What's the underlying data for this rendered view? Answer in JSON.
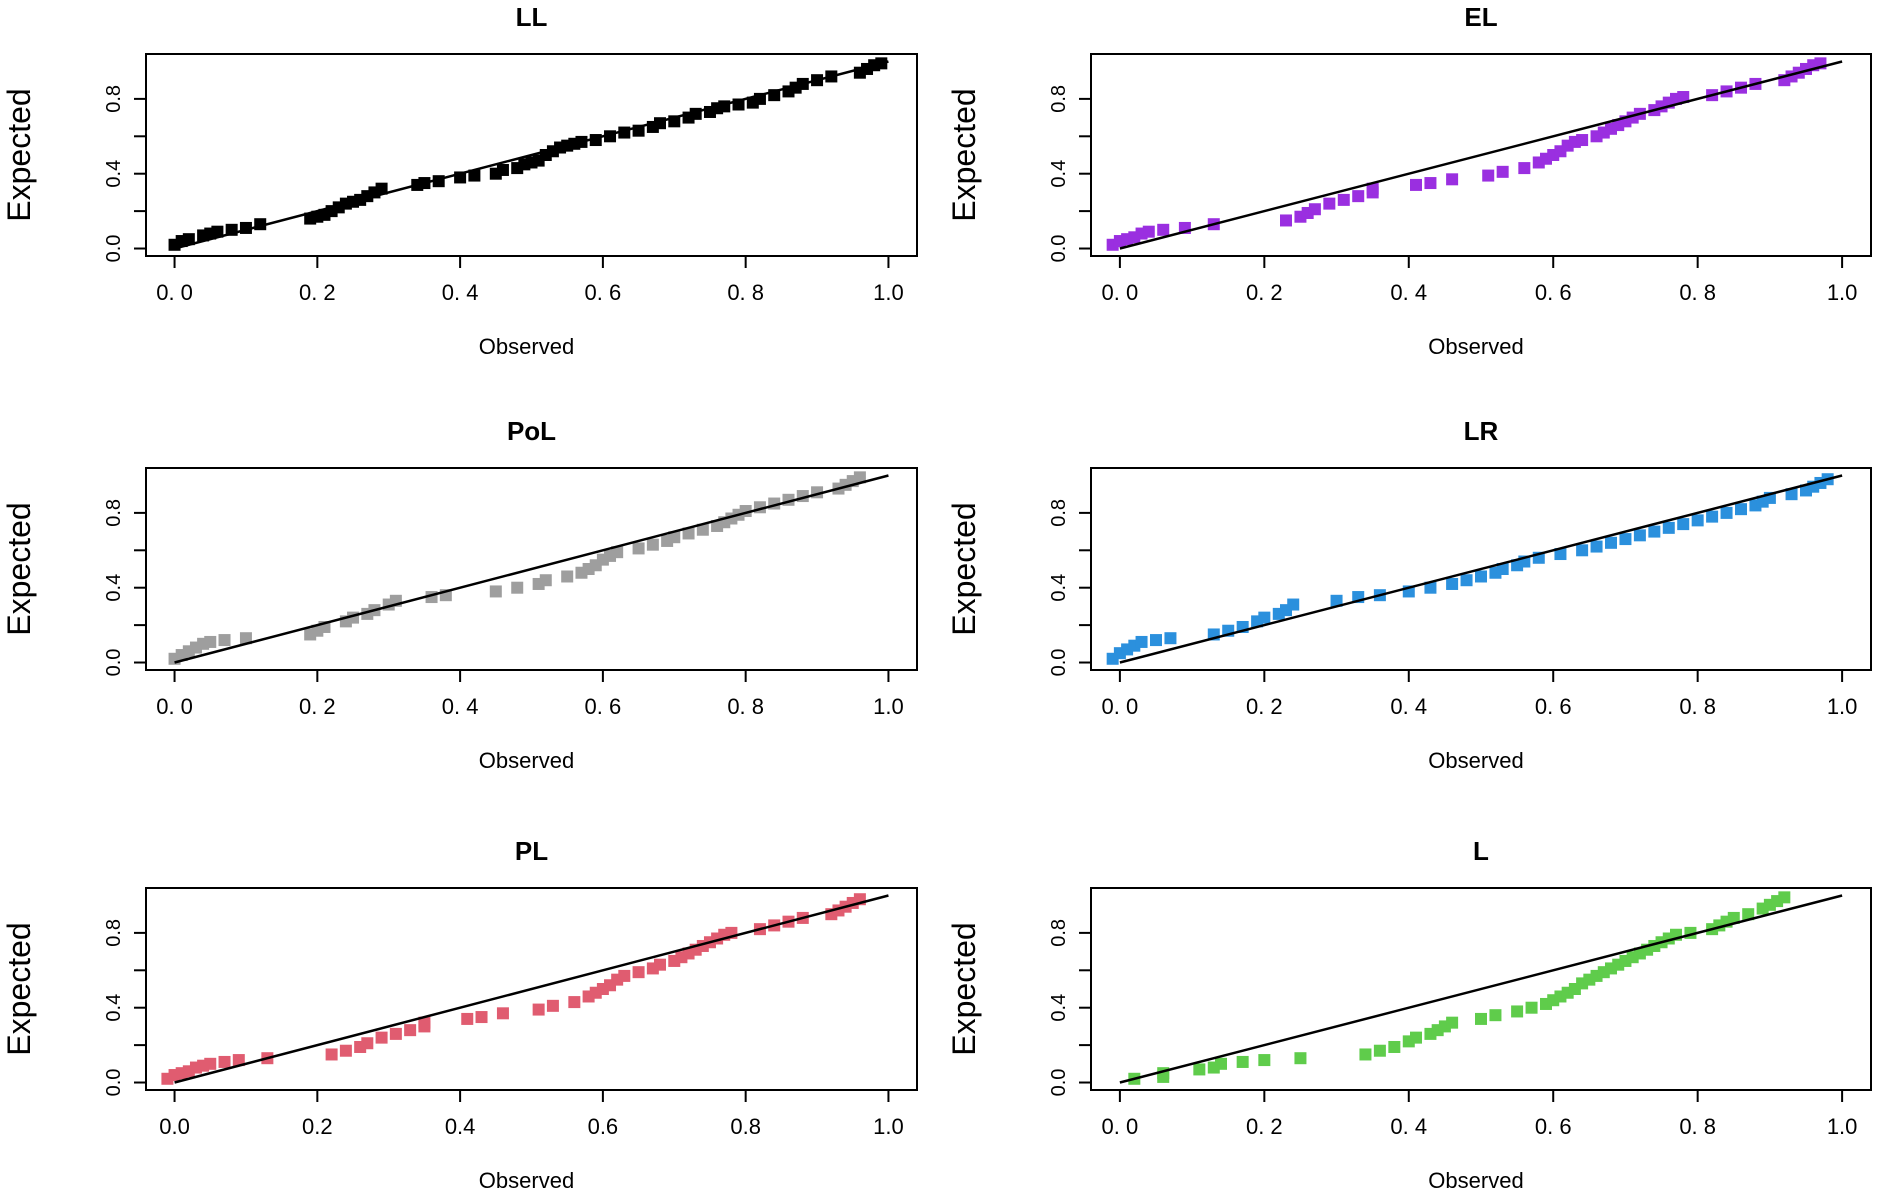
{
  "chart_data": [
    {
      "type": "scatter",
      "title": "LL",
      "xlabel": "Observed",
      "ylabel": "Expected",
      "xlim": [
        0,
        1
      ],
      "ylim": [
        0,
        1
      ],
      "x_tick_labels": [
        "0. 0",
        "0. 2",
        "0. 4",
        "0. 6",
        "0. 8",
        "1.0"
      ],
      "y_tick_labels": [
        "0.0",
        "0.4",
        "0.8"
      ],
      "color": "#000000",
      "reference_line": [
        [
          0,
          0
        ],
        [
          1,
          1
        ]
      ],
      "points": [
        [
          0.0,
          0.02
        ],
        [
          0.01,
          0.04
        ],
        [
          0.02,
          0.05
        ],
        [
          0.04,
          0.07
        ],
        [
          0.05,
          0.08
        ],
        [
          0.06,
          0.09
        ],
        [
          0.08,
          0.1
        ],
        [
          0.1,
          0.11
        ],
        [
          0.12,
          0.13
        ],
        [
          0.19,
          0.16
        ],
        [
          0.2,
          0.17
        ],
        [
          0.21,
          0.18
        ],
        [
          0.22,
          0.2
        ],
        [
          0.23,
          0.22
        ],
        [
          0.24,
          0.24
        ],
        [
          0.25,
          0.25
        ],
        [
          0.26,
          0.26
        ],
        [
          0.27,
          0.28
        ],
        [
          0.28,
          0.3
        ],
        [
          0.29,
          0.32
        ],
        [
          0.34,
          0.34
        ],
        [
          0.35,
          0.35
        ],
        [
          0.37,
          0.36
        ],
        [
          0.4,
          0.38
        ],
        [
          0.42,
          0.39
        ],
        [
          0.45,
          0.4
        ],
        [
          0.46,
          0.42
        ],
        [
          0.48,
          0.43
        ],
        [
          0.49,
          0.45
        ],
        [
          0.5,
          0.46
        ],
        [
          0.51,
          0.47
        ],
        [
          0.52,
          0.5
        ],
        [
          0.53,
          0.52
        ],
        [
          0.54,
          0.54
        ],
        [
          0.55,
          0.55
        ],
        [
          0.56,
          0.56
        ],
        [
          0.57,
          0.57
        ],
        [
          0.59,
          0.58
        ],
        [
          0.61,
          0.6
        ],
        [
          0.63,
          0.62
        ],
        [
          0.65,
          0.63
        ],
        [
          0.67,
          0.65
        ],
        [
          0.68,
          0.67
        ],
        [
          0.7,
          0.68
        ],
        [
          0.72,
          0.7
        ],
        [
          0.73,
          0.72
        ],
        [
          0.75,
          0.73
        ],
        [
          0.76,
          0.75
        ],
        [
          0.77,
          0.76
        ],
        [
          0.79,
          0.77
        ],
        [
          0.81,
          0.78
        ],
        [
          0.82,
          0.8
        ],
        [
          0.84,
          0.82
        ],
        [
          0.86,
          0.84
        ],
        [
          0.87,
          0.86
        ],
        [
          0.88,
          0.88
        ],
        [
          0.9,
          0.9
        ],
        [
          0.92,
          0.92
        ],
        [
          0.96,
          0.94
        ],
        [
          0.97,
          0.96
        ],
        [
          0.98,
          0.98
        ],
        [
          0.99,
          0.99
        ]
      ]
    },
    {
      "type": "scatter",
      "title": "EL",
      "xlabel": "Observed",
      "ylabel": "Expected",
      "xlim": [
        0,
        1
      ],
      "ylim": [
        0,
        1
      ],
      "x_tick_labels": [
        "0. 0",
        "0. 2",
        "0. 4",
        "0. 6",
        "0. 8",
        "1.0"
      ],
      "y_tick_labels": [
        "0.0",
        "0.4",
        "0.8"
      ],
      "color": "#9a2fe0",
      "reference_line": [
        [
          0,
          0
        ],
        [
          1,
          1
        ]
      ],
      "points": [
        [
          -0.01,
          0.02
        ],
        [
          0.0,
          0.04
        ],
        [
          0.01,
          0.05
        ],
        [
          0.02,
          0.06
        ],
        [
          0.03,
          0.08
        ],
        [
          0.04,
          0.09
        ],
        [
          0.06,
          0.1
        ],
        [
          0.09,
          0.11
        ],
        [
          0.13,
          0.13
        ],
        [
          0.23,
          0.15
        ],
        [
          0.25,
          0.17
        ],
        [
          0.26,
          0.19
        ],
        [
          0.27,
          0.21
        ],
        [
          0.29,
          0.24
        ],
        [
          0.31,
          0.26
        ],
        [
          0.33,
          0.28
        ],
        [
          0.35,
          0.3
        ],
        [
          0.35,
          0.32
        ],
        [
          0.41,
          0.34
        ],
        [
          0.43,
          0.35
        ],
        [
          0.46,
          0.37
        ],
        [
          0.51,
          0.39
        ],
        [
          0.53,
          0.41
        ],
        [
          0.56,
          0.43
        ],
        [
          0.58,
          0.46
        ],
        [
          0.59,
          0.48
        ],
        [
          0.6,
          0.5
        ],
        [
          0.61,
          0.52
        ],
        [
          0.62,
          0.55
        ],
        [
          0.63,
          0.57
        ],
        [
          0.64,
          0.58
        ],
        [
          0.66,
          0.6
        ],
        [
          0.67,
          0.62
        ],
        [
          0.68,
          0.64
        ],
        [
          0.69,
          0.66
        ],
        [
          0.7,
          0.68
        ],
        [
          0.71,
          0.7
        ],
        [
          0.72,
          0.72
        ],
        [
          0.74,
          0.74
        ],
        [
          0.75,
          0.76
        ],
        [
          0.76,
          0.78
        ],
        [
          0.77,
          0.8
        ],
        [
          0.78,
          0.81
        ],
        [
          0.82,
          0.82
        ],
        [
          0.84,
          0.84
        ],
        [
          0.86,
          0.86
        ],
        [
          0.88,
          0.88
        ],
        [
          0.92,
          0.9
        ],
        [
          0.93,
          0.92
        ],
        [
          0.94,
          0.94
        ],
        [
          0.95,
          0.96
        ],
        [
          0.96,
          0.98
        ],
        [
          0.97,
          0.99
        ]
      ]
    },
    {
      "type": "scatter",
      "title": "PoL",
      "xlabel": "Observed",
      "ylabel": "Expected",
      "xlim": [
        0,
        1
      ],
      "ylim": [
        0,
        1
      ],
      "x_tick_labels": [
        "0. 0",
        "0. 2",
        "0. 4",
        "0. 6",
        "0. 8",
        "1.0"
      ],
      "y_tick_labels": [
        "0.0",
        "0.4",
        "0.8"
      ],
      "color": "#9e9e9e",
      "reference_line": [
        [
          0,
          0
        ],
        [
          1,
          1
        ]
      ],
      "points": [
        [
          0.0,
          0.02
        ],
        [
          0.01,
          0.04
        ],
        [
          0.02,
          0.06
        ],
        [
          0.03,
          0.08
        ],
        [
          0.04,
          0.1
        ],
        [
          0.05,
          0.11
        ],
        [
          0.07,
          0.12
        ],
        [
          0.1,
          0.13
        ],
        [
          0.19,
          0.15
        ],
        [
          0.2,
          0.17
        ],
        [
          0.21,
          0.19
        ],
        [
          0.24,
          0.22
        ],
        [
          0.25,
          0.24
        ],
        [
          0.27,
          0.26
        ],
        [
          0.28,
          0.28
        ],
        [
          0.3,
          0.31
        ],
        [
          0.31,
          0.33
        ],
        [
          0.36,
          0.35
        ],
        [
          0.38,
          0.36
        ],
        [
          0.45,
          0.38
        ],
        [
          0.48,
          0.4
        ],
        [
          0.51,
          0.42
        ],
        [
          0.52,
          0.44
        ],
        [
          0.55,
          0.46
        ],
        [
          0.57,
          0.48
        ],
        [
          0.58,
          0.5
        ],
        [
          0.59,
          0.52
        ],
        [
          0.6,
          0.55
        ],
        [
          0.61,
          0.57
        ],
        [
          0.62,
          0.59
        ],
        [
          0.65,
          0.61
        ],
        [
          0.67,
          0.63
        ],
        [
          0.69,
          0.65
        ],
        [
          0.7,
          0.67
        ],
        [
          0.72,
          0.69
        ],
        [
          0.74,
          0.71
        ],
        [
          0.76,
          0.73
        ],
        [
          0.77,
          0.75
        ],
        [
          0.78,
          0.77
        ],
        [
          0.79,
          0.79
        ],
        [
          0.8,
          0.81
        ],
        [
          0.82,
          0.83
        ],
        [
          0.84,
          0.85
        ],
        [
          0.86,
          0.87
        ],
        [
          0.88,
          0.89
        ],
        [
          0.9,
          0.91
        ],
        [
          0.93,
          0.93
        ],
        [
          0.94,
          0.95
        ],
        [
          0.95,
          0.97
        ],
        [
          0.96,
          0.99
        ]
      ]
    },
    {
      "type": "scatter",
      "title": "LR",
      "xlabel": "Observed",
      "ylabel": "Expected",
      "xlim": [
        0,
        1
      ],
      "ylim": [
        0,
        1
      ],
      "x_tick_labels": [
        "0. 0",
        "0. 2",
        "0. 4",
        "0. 6",
        "0. 8",
        "1.0"
      ],
      "y_tick_labels": [
        "0.0",
        "0.4",
        "0.8"
      ],
      "color": "#2b90dd",
      "reference_line": [
        [
          0,
          0
        ],
        [
          1,
          1
        ]
      ],
      "points": [
        [
          -0.01,
          0.02
        ],
        [
          0.0,
          0.05
        ],
        [
          0.01,
          0.07
        ],
        [
          0.02,
          0.09
        ],
        [
          0.03,
          0.11
        ],
        [
          0.05,
          0.12
        ],
        [
          0.07,
          0.13
        ],
        [
          0.13,
          0.15
        ],
        [
          0.15,
          0.17
        ],
        [
          0.17,
          0.19
        ],
        [
          0.19,
          0.22
        ],
        [
          0.2,
          0.24
        ],
        [
          0.22,
          0.26
        ],
        [
          0.23,
          0.28
        ],
        [
          0.24,
          0.31
        ],
        [
          0.3,
          0.33
        ],
        [
          0.33,
          0.35
        ],
        [
          0.36,
          0.36
        ],
        [
          0.4,
          0.38
        ],
        [
          0.43,
          0.4
        ],
        [
          0.46,
          0.42
        ],
        [
          0.48,
          0.44
        ],
        [
          0.5,
          0.46
        ],
        [
          0.52,
          0.48
        ],
        [
          0.53,
          0.5
        ],
        [
          0.55,
          0.52
        ],
        [
          0.56,
          0.54
        ],
        [
          0.58,
          0.56
        ],
        [
          0.61,
          0.58
        ],
        [
          0.64,
          0.6
        ],
        [
          0.66,
          0.62
        ],
        [
          0.68,
          0.64
        ],
        [
          0.7,
          0.66
        ],
        [
          0.72,
          0.68
        ],
        [
          0.74,
          0.7
        ],
        [
          0.76,
          0.72
        ],
        [
          0.78,
          0.74
        ],
        [
          0.8,
          0.76
        ],
        [
          0.82,
          0.78
        ],
        [
          0.84,
          0.8
        ],
        [
          0.86,
          0.82
        ],
        [
          0.88,
          0.84
        ],
        [
          0.89,
          0.86
        ],
        [
          0.9,
          0.88
        ],
        [
          0.93,
          0.9
        ],
        [
          0.95,
          0.92
        ],
        [
          0.96,
          0.94
        ],
        [
          0.97,
          0.96
        ],
        [
          0.98,
          0.98
        ]
      ]
    },
    {
      "type": "scatter",
      "title": "PL",
      "xlabel": "Observed",
      "ylabel": "Expected",
      "xlim": [
        0,
        1
      ],
      "ylim": [
        0,
        1
      ],
      "x_tick_labels": [
        "0.0",
        "0.2",
        "0.4",
        "0.6",
        "0.8",
        "1.0"
      ],
      "y_tick_labels": [
        "0.0",
        "0.4",
        "0.8"
      ],
      "color": "#e05c70",
      "reference_line": [
        [
          0,
          0
        ],
        [
          1,
          1
        ]
      ],
      "points": [
        [
          -0.01,
          0.02
        ],
        [
          0.0,
          0.04
        ],
        [
          0.01,
          0.05
        ],
        [
          0.02,
          0.06
        ],
        [
          0.03,
          0.08
        ],
        [
          0.04,
          0.09
        ],
        [
          0.05,
          0.1
        ],
        [
          0.07,
          0.11
        ],
        [
          0.09,
          0.12
        ],
        [
          0.13,
          0.13
        ],
        [
          0.22,
          0.15
        ],
        [
          0.24,
          0.17
        ],
        [
          0.26,
          0.19
        ],
        [
          0.27,
          0.21
        ],
        [
          0.29,
          0.24
        ],
        [
          0.31,
          0.26
        ],
        [
          0.33,
          0.28
        ],
        [
          0.35,
          0.3
        ],
        [
          0.35,
          0.32
        ],
        [
          0.41,
          0.34
        ],
        [
          0.43,
          0.35
        ],
        [
          0.46,
          0.37
        ],
        [
          0.51,
          0.39
        ],
        [
          0.53,
          0.41
        ],
        [
          0.56,
          0.43
        ],
        [
          0.58,
          0.46
        ],
        [
          0.59,
          0.48
        ],
        [
          0.6,
          0.5
        ],
        [
          0.61,
          0.52
        ],
        [
          0.62,
          0.55
        ],
        [
          0.63,
          0.57
        ],
        [
          0.65,
          0.59
        ],
        [
          0.67,
          0.61
        ],
        [
          0.68,
          0.63
        ],
        [
          0.7,
          0.65
        ],
        [
          0.71,
          0.67
        ],
        [
          0.72,
          0.69
        ],
        [
          0.73,
          0.71
        ],
        [
          0.74,
          0.73
        ],
        [
          0.75,
          0.75
        ],
        [
          0.76,
          0.77
        ],
        [
          0.77,
          0.79
        ],
        [
          0.78,
          0.8
        ],
        [
          0.82,
          0.82
        ],
        [
          0.84,
          0.84
        ],
        [
          0.86,
          0.86
        ],
        [
          0.88,
          0.88
        ],
        [
          0.92,
          0.9
        ],
        [
          0.93,
          0.92
        ],
        [
          0.94,
          0.94
        ],
        [
          0.95,
          0.96
        ],
        [
          0.96,
          0.98
        ]
      ]
    },
    {
      "type": "scatter",
      "title": "L",
      "xlabel": "Observed",
      "ylabel": "Expected",
      "xlim": [
        0,
        1
      ],
      "ylim": [
        0,
        1
      ],
      "x_tick_labels": [
        "0. 0",
        "0. 2",
        "0. 4",
        "0. 6",
        "0. 8",
        "1.0"
      ],
      "y_tick_labels": [
        "0.0",
        "0.4",
        "0.8"
      ],
      "color": "#5fcc4b",
      "reference_line": [
        [
          0,
          0
        ],
        [
          1,
          1
        ]
      ],
      "points": [
        [
          0.02,
          0.02
        ],
        [
          0.06,
          0.03
        ],
        [
          0.06,
          0.05
        ],
        [
          0.11,
          0.07
        ],
        [
          0.13,
          0.08
        ],
        [
          0.14,
          0.1
        ],
        [
          0.17,
          0.11
        ],
        [
          0.2,
          0.12
        ],
        [
          0.25,
          0.13
        ],
        [
          0.34,
          0.15
        ],
        [
          0.36,
          0.17
        ],
        [
          0.38,
          0.19
        ],
        [
          0.4,
          0.22
        ],
        [
          0.41,
          0.24
        ],
        [
          0.43,
          0.26
        ],
        [
          0.44,
          0.28
        ],
        [
          0.45,
          0.3
        ],
        [
          0.46,
          0.32
        ],
        [
          0.5,
          0.34
        ],
        [
          0.52,
          0.36
        ],
        [
          0.55,
          0.38
        ],
        [
          0.57,
          0.4
        ],
        [
          0.59,
          0.42
        ],
        [
          0.6,
          0.44
        ],
        [
          0.61,
          0.46
        ],
        [
          0.62,
          0.48
        ],
        [
          0.63,
          0.5
        ],
        [
          0.64,
          0.53
        ],
        [
          0.65,
          0.55
        ],
        [
          0.66,
          0.57
        ],
        [
          0.67,
          0.59
        ],
        [
          0.68,
          0.61
        ],
        [
          0.69,
          0.63
        ],
        [
          0.7,
          0.65
        ],
        [
          0.71,
          0.67
        ],
        [
          0.72,
          0.69
        ],
        [
          0.73,
          0.71
        ],
        [
          0.74,
          0.73
        ],
        [
          0.75,
          0.75
        ],
        [
          0.76,
          0.77
        ],
        [
          0.77,
          0.79
        ],
        [
          0.79,
          0.8
        ],
        [
          0.82,
          0.82
        ],
        [
          0.83,
          0.84
        ],
        [
          0.84,
          0.86
        ],
        [
          0.85,
          0.88
        ],
        [
          0.87,
          0.9
        ],
        [
          0.89,
          0.93
        ],
        [
          0.9,
          0.95
        ],
        [
          0.91,
          0.97
        ],
        [
          0.92,
          0.99
        ]
      ]
    }
  ]
}
